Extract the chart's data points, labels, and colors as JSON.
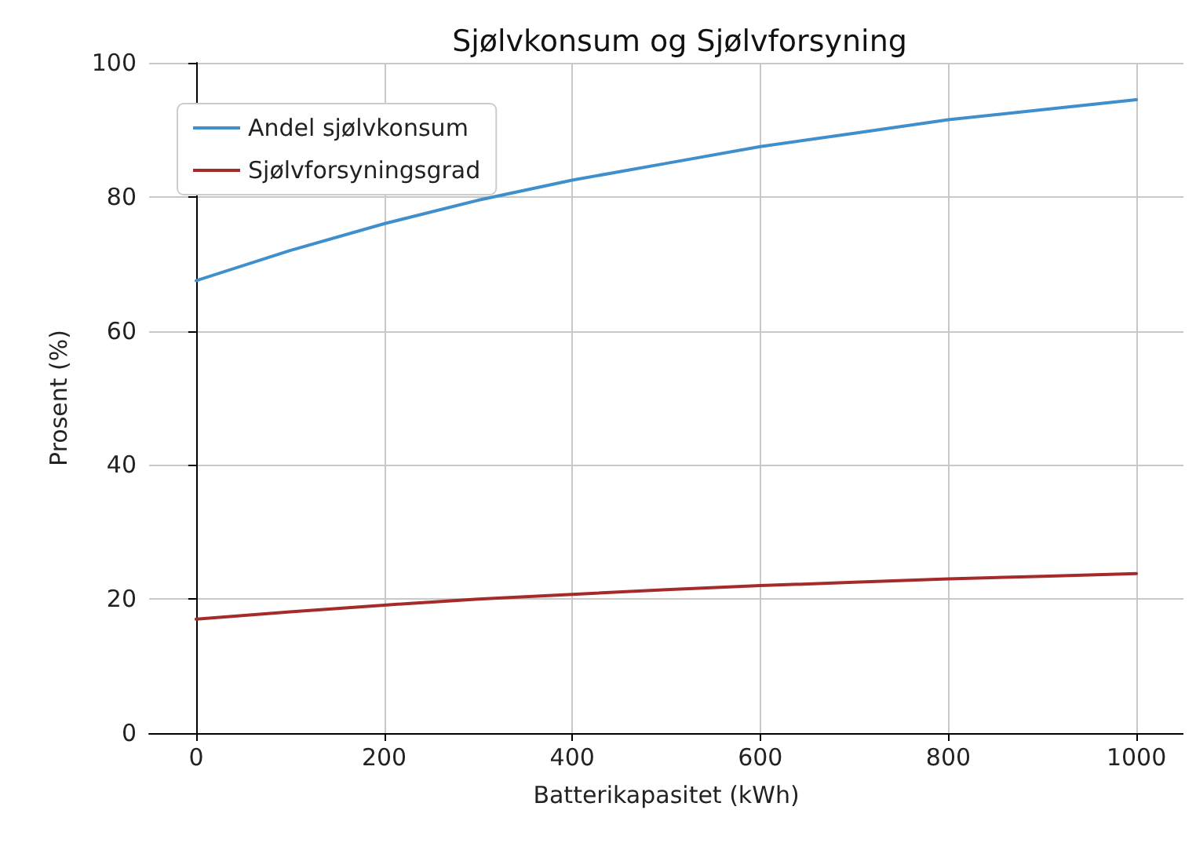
{
  "chart_data": {
    "type": "line",
    "title": "Sjølvkonsum og Sjølvforsyning",
    "xlabel": "Batterikapasitet (kWh)",
    "ylabel": "Prosent (%)",
    "x": [
      0,
      100,
      200,
      300,
      400,
      500,
      600,
      700,
      800,
      900,
      1000
    ],
    "series": [
      {
        "name": "Andel sjølvkonsum",
        "color": "#3f8fcc",
        "values": [
          67.5,
          72,
          76,
          79.5,
          82.5,
          85,
          87.5,
          89.5,
          91.5,
          93,
          94.5
        ]
      },
      {
        "name": "Sjølvforsyningsgrad",
        "color": "#a52a2a",
        "values": [
          17,
          18.1,
          19.1,
          20,
          20.7,
          21.4,
          22,
          22.5,
          23,
          23.4,
          23.8
        ]
      }
    ],
    "xlim": [
      -50,
      1050
    ],
    "xticks": [
      0,
      200,
      400,
      600,
      800,
      1000
    ],
    "ylim": [
      0,
      100
    ],
    "yticks": [
      0,
      20,
      40,
      60,
      80,
      100
    ],
    "grid": true,
    "legend": "top left",
    "marker": "none",
    "line_style": "solid"
  }
}
